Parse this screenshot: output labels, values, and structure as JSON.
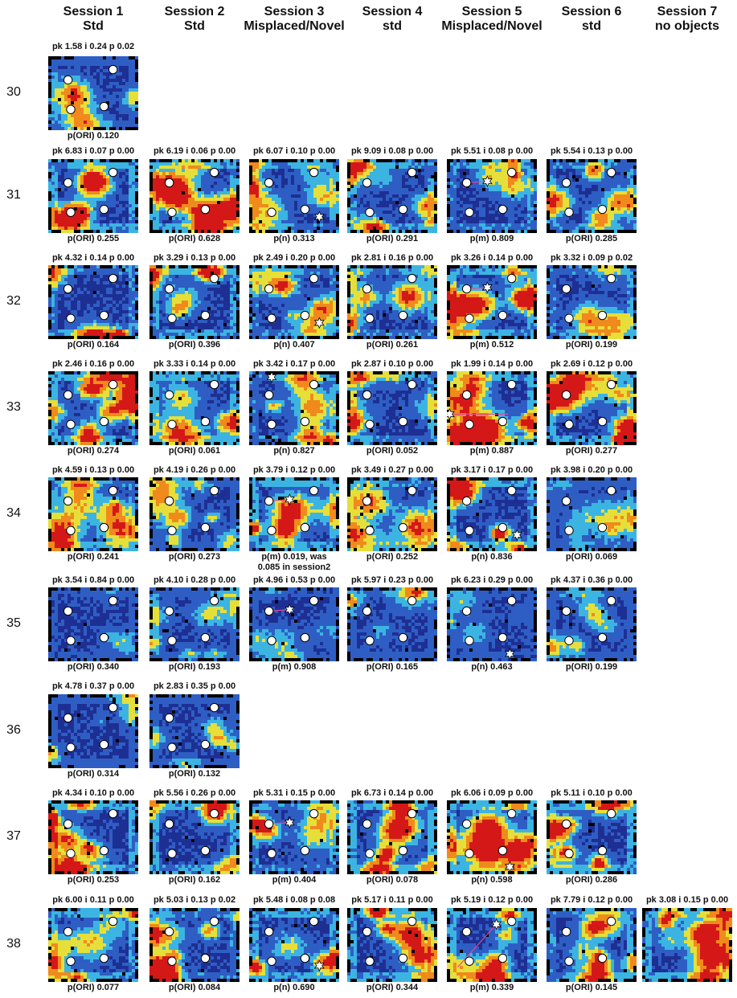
{
  "headers": [
    {
      "line1": "Session 1",
      "line2": "Std"
    },
    {
      "line1": "Session 2",
      "line2": "Std"
    },
    {
      "line1": "Session 3",
      "line2": "Misplaced/Novel"
    },
    {
      "line1": "Session 4",
      "line2": "std"
    },
    {
      "line1": "Session 5",
      "line2": "Misplaced/Novel"
    },
    {
      "line1": "Session 6",
      "line2": "std"
    },
    {
      "line1": "Session 7",
      "line2": "no objects"
    }
  ],
  "rows": [
    {
      "label": "30",
      "cells": [
        {
          "col": 0,
          "top": "pk 1.58 i 0.24 p 0.02",
          "bottom": "p(ORI) 0.120",
          "intensity": "low",
          "marker": "none"
        }
      ]
    },
    {
      "label": "31",
      "cells": [
        {
          "col": 0,
          "top": "pk 6.83 i 0.07 p 0.00",
          "bottom": "p(ORI) 0.255",
          "intensity": "high",
          "marker": "none"
        },
        {
          "col": 1,
          "top": "pk 6.19 i 0.06 p 0.00",
          "bottom": "p(ORI) 0.628",
          "intensity": "high",
          "marker": "none"
        },
        {
          "col": 2,
          "top": "pk 6.07 i 0.10 p 0.00",
          "bottom": "p(n) 0.313",
          "intensity": "med",
          "marker": "novel"
        },
        {
          "col": 3,
          "top": "pk 9.09 i 0.08 p 0.00",
          "bottom": "p(ORI) 0.291",
          "intensity": "med",
          "marker": "none"
        },
        {
          "col": 4,
          "top": "pk 5.51 i 0.08 p 0.00",
          "bottom": "p(m) 0.809",
          "intensity": "med",
          "marker": "misplaced"
        },
        {
          "col": 5,
          "top": "pk 5.54 i 0.13 p 0.00",
          "bottom": "p(ORI) 0.285",
          "intensity": "med",
          "marker": "none"
        }
      ]
    },
    {
      "label": "32",
      "cells": [
        {
          "col": 0,
          "top": "pk 4.32 i 0.14 p 0.00",
          "bottom": "p(ORI) 0.164",
          "intensity": "med",
          "marker": "none"
        },
        {
          "col": 1,
          "top": "pk 3.29 i 0.13 p 0.00",
          "bottom": "p(ORI) 0.396",
          "intensity": "high",
          "marker": "none"
        },
        {
          "col": 2,
          "top": "pk 2.49 i 0.20 p 0.00",
          "bottom": "p(n) 0.407",
          "intensity": "med",
          "marker": "novel"
        },
        {
          "col": 3,
          "top": "pk 2.81 i 0.16 p 0.00",
          "bottom": "p(ORI) 0.261",
          "intensity": "med",
          "marker": "none"
        },
        {
          "col": 4,
          "top": "pk 3.26 i 0.14 p 0.00",
          "bottom": "p(m) 0.512",
          "intensity": "high",
          "marker": "misplaced"
        },
        {
          "col": 5,
          "top": "pk 3.32 i 0.09 p 0.02",
          "bottom": "p(ORI) 0.199",
          "intensity": "med",
          "marker": "none"
        }
      ]
    },
    {
      "label": "33",
      "cells": [
        {
          "col": 0,
          "top": "pk 2.46 i 0.16 p 0.00",
          "bottom": "p(ORI) 0.274",
          "intensity": "high",
          "marker": "none"
        },
        {
          "col": 1,
          "top": "pk 3.33 i 0.14 p 0.00",
          "bottom": "p(ORI) 0.061",
          "intensity": "high",
          "marker": "none"
        },
        {
          "col": 2,
          "top": "pk 3.42 i 0.17 p 0.00",
          "bottom": "p(n) 0.827",
          "intensity": "med",
          "marker": "novel-top"
        },
        {
          "col": 3,
          "top": "pk 2.87 i 0.10 p 0.00",
          "bottom": "p(ORI) 0.052",
          "intensity": "med",
          "marker": "none"
        },
        {
          "col": 4,
          "top": "pk 1.99 i 0.14 p 0.00",
          "bottom": "p(m) 0.887",
          "intensity": "high",
          "marker": "misplaced-left"
        },
        {
          "col": 5,
          "top": "pk 2.69 i 0.12 p 0.00",
          "bottom": "p(ORI) 0.277",
          "intensity": "high",
          "marker": "none"
        }
      ]
    },
    {
      "label": "34",
      "cells": [
        {
          "col": 0,
          "top": "pk 4.59 i 0.13 p 0.00",
          "bottom": "p(ORI) 0.241",
          "intensity": "med",
          "marker": "none"
        },
        {
          "col": 1,
          "top": "pk 4.19 i 0.26 p 0.00",
          "bottom": "p(ORI) 0.273",
          "intensity": "low",
          "marker": "none"
        },
        {
          "col": 2,
          "top": "pk 3.79 i 0.12 p 0.00",
          "bottom": "p(m) 0.019, was",
          "bottom2": "0.085 in session2",
          "intensity": "high",
          "marker": "misplaced"
        },
        {
          "col": 3,
          "top": "pk 3.49 i 0.27 p 0.00",
          "bottom": "p(ORI) 0.252",
          "intensity": "med",
          "marker": "none"
        },
        {
          "col": 4,
          "top": "pk 3.17 i 0.17 p 0.00",
          "bottom": "p(n) 0.836",
          "intensity": "high",
          "marker": "novel"
        },
        {
          "col": 5,
          "top": "pk 3.98 i 0.20 p 0.00",
          "bottom": "p(ORI) 0.069",
          "intensity": "low",
          "marker": "none"
        }
      ]
    },
    {
      "label": "35",
      "cells": [
        {
          "col": 0,
          "top": "pk 3.54 i 0.84 p 0.00",
          "bottom": "p(ORI) 0.340",
          "intensity": "verylow",
          "marker": "none"
        },
        {
          "col": 1,
          "top": "pk 4.10 i 0.28 p 0.00",
          "bottom": "p(ORI) 0.193",
          "intensity": "low",
          "marker": "none"
        },
        {
          "col": 2,
          "top": "pk 4.96 i 0.53 p 0.00",
          "bottom": "p(m) 0.908",
          "intensity": "verylow",
          "marker": "misplaced"
        },
        {
          "col": 3,
          "top": "pk 5.97 i 0.23 p 0.00",
          "bottom": "p(ORI) 0.165",
          "intensity": "low",
          "marker": "none"
        },
        {
          "col": 4,
          "top": "pk 6.23 i 0.29 p 0.00",
          "bottom": "p(n) 0.463",
          "intensity": "verylow",
          "marker": "novel-bottom"
        },
        {
          "col": 5,
          "top": "pk 4.37 i 0.36 p 0.00",
          "bottom": "p(ORI) 0.199",
          "intensity": "low",
          "marker": "none"
        }
      ]
    },
    {
      "label": "36",
      "cells": [
        {
          "col": 0,
          "top": "pk 4.78 i 0.37 p 0.00",
          "bottom": "p(ORI) 0.314",
          "intensity": "low",
          "marker": "none"
        },
        {
          "col": 1,
          "top": "pk 2.83 i 0.35 p 0.00",
          "bottom": "p(ORI) 0.132",
          "intensity": "low",
          "marker": "none"
        }
      ]
    },
    {
      "label": "37",
      "cells": [
        {
          "col": 0,
          "top": "pk 4.34 i 0.10 p 0.00",
          "bottom": "p(ORI) 0.253",
          "intensity": "high",
          "marker": "none"
        },
        {
          "col": 1,
          "top": "pk 5.56 i 0.26 p 0.00",
          "bottom": "p(ORI) 0.162",
          "intensity": "high",
          "marker": "none"
        },
        {
          "col": 2,
          "top": "pk 5.31 i 0.15 p 0.00",
          "bottom": "p(m) 0.404",
          "intensity": "med",
          "marker": "misplaced"
        },
        {
          "col": 3,
          "top": "pk 6.73 i 0.14 p 0.00",
          "bottom": "p(ORI) 0.078",
          "intensity": "high",
          "marker": "none"
        },
        {
          "col": 4,
          "top": "pk 6.06 i 0.09 p 0.00",
          "bottom": "p(n) 0.598",
          "intensity": "high",
          "marker": "novel-bottom"
        },
        {
          "col": 5,
          "top": "pk 5.11 i 0.10 p 0.00",
          "bottom": "p(ORI) 0.286",
          "intensity": "high",
          "marker": "none"
        }
      ]
    },
    {
      "label": "38",
      "cells": [
        {
          "col": 0,
          "top": "pk 6.00 i 0.11 p 0.00",
          "bottom": "p(ORI) 0.077",
          "intensity": "high",
          "marker": "none"
        },
        {
          "col": 1,
          "top": "pk 5.03 i 0.13 p 0.02",
          "bottom": "p(ORI) 0.084",
          "intensity": "med",
          "marker": "none"
        },
        {
          "col": 2,
          "top": "pk 5.48 i 0.08 p 0.08",
          "bottom": "p(n) 0.690",
          "intensity": "high",
          "marker": "novel"
        },
        {
          "col": 3,
          "top": "pk 5.17 i 0.11 p 0.00",
          "bottom": "p(ORI) 0.344",
          "intensity": "high",
          "marker": "none"
        },
        {
          "col": 4,
          "top": "pk 5.19 i 0.12 p 0.00",
          "bottom": "p(m) 0.339",
          "intensity": "high",
          "marker": "misplaced-diag"
        },
        {
          "col": 5,
          "top": "pk 7.79 i 0.12 p 0.00",
          "bottom": "p(ORI) 0.145",
          "intensity": "med",
          "marker": "none"
        },
        {
          "col": 6,
          "top": "pk 3.08 i 0.15 p 0.00",
          "bottom": "",
          "intensity": "high",
          "marker": "noobjects"
        }
      ]
    }
  ],
  "colors": {
    "dark": "#1e2f94",
    "blue": "#2e5ec4",
    "cyan": "#3cb4e2",
    "yellow": "#e6df3a",
    "orange": "#f08a1c",
    "red": "#d41818",
    "black": "#000000",
    "object": "#ffffff",
    "link": "#e0489a"
  }
}
